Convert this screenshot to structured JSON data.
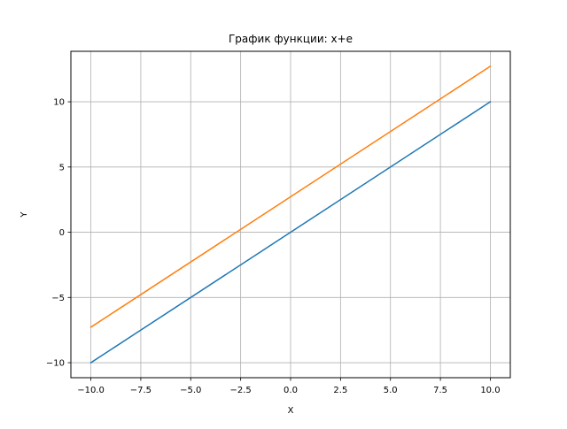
{
  "chart_data": {
    "type": "line",
    "title": "График функции: x+e",
    "xlabel": "X",
    "ylabel": "Y",
    "xlim": [
      -11,
      11
    ],
    "ylim": [
      -11.15,
      13.87
    ],
    "xticks": [
      -10,
      -7.5,
      -5,
      -2.5,
      0,
      2.5,
      5,
      7.5,
      10
    ],
    "xtick_labels": [
      "−10.0",
      "−7.5",
      "−5.0",
      "−2.5",
      "0.0",
      "2.5",
      "5.0",
      "7.5",
      "10.0"
    ],
    "yticks": [
      -10,
      -5,
      0,
      5,
      10
    ],
    "ytick_labels": [
      "−10",
      "−5",
      "0",
      "5",
      "10"
    ],
    "grid": true,
    "series": [
      {
        "color": "#1f77b4",
        "x": [
          -10,
          10
        ],
        "y": [
          -10,
          10
        ]
      },
      {
        "color": "#ff7f0e",
        "x": [
          -10,
          10
        ],
        "y": [
          -7.28,
          12.72
        ]
      }
    ]
  }
}
